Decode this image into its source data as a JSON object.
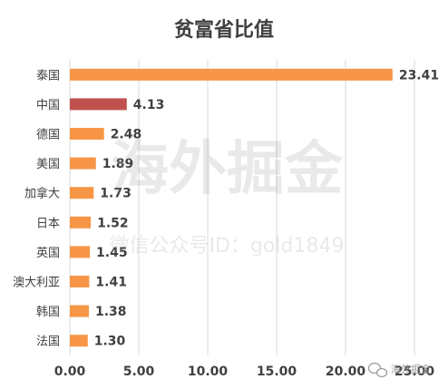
{
  "chart_data": {
    "type": "bar",
    "orientation": "horizontal",
    "title": "贫富省比值",
    "categories": [
      "泰国",
      "中国",
      "德国",
      "美国",
      "加拿大",
      "日本",
      "英国",
      "澳大利亚",
      "韩国",
      "法国"
    ],
    "values": [
      23.41,
      4.13,
      2.48,
      1.89,
      1.73,
      1.52,
      1.45,
      1.41,
      1.38,
      1.3
    ],
    "value_labels": [
      "23.41",
      "4.13",
      "2.48",
      "1.89",
      "1.73",
      "1.52",
      "1.45",
      "1.41",
      "1.38",
      "1.30"
    ],
    "xlim": [
      0,
      25
    ],
    "xticks": [
      "0.00",
      "5.00",
      "10.00",
      "15.00",
      "20.00",
      "25.00"
    ],
    "xlabel": "",
    "ylabel": "",
    "grid": "vertical",
    "legend": "none",
    "colors": {
      "bar": "#F79646",
      "highlight_bar": "#C0504D",
      "gridline": "#D9D9D9",
      "text": "#404040"
    },
    "highlight_category": "中国"
  },
  "watermark": {
    "main": "海外掘金",
    "sub": "微信公众号ID：gold1849"
  },
  "corner_badge": {
    "icon": "wechat-icon",
    "text": "海外掘金"
  }
}
